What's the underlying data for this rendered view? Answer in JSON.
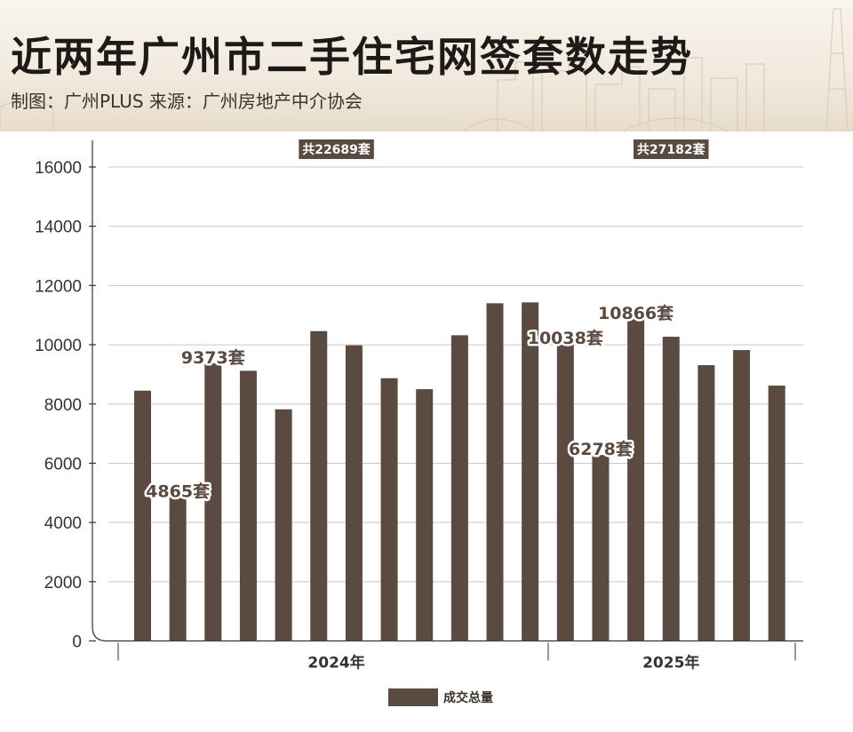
{
  "header": {
    "title": "近两年广州市二手住宅网签套数走势",
    "subtitle": "制图：广州PLUS  来源：广州房地产中介协会"
  },
  "colors": {
    "bar": "#5b4a40",
    "badge": "#5b4a40",
    "grid": "#c8c8c8",
    "axis": "#333333"
  },
  "chart_data": {
    "type": "bar",
    "ylim": [
      0,
      16000
    ],
    "yticks": [
      0,
      2000,
      4000,
      6000,
      8000,
      10000,
      12000,
      14000,
      16000
    ],
    "values": [
      8450,
      4865,
      9373,
      9120,
      7820,
      10460,
      9980,
      8870,
      8500,
      10320,
      11400,
      11430,
      10038,
      6278,
      10866,
      10270,
      9310,
      9820,
      8620
    ],
    "groups": [
      {
        "label": "2024年",
        "count": 12,
        "total_label": "共22689套"
      },
      {
        "label": "2025年",
        "count": 7,
        "total_label": "共27182套"
      }
    ],
    "data_labels": [
      {
        "index": 1,
        "text": "4865套"
      },
      {
        "index": 2,
        "text": "9373套"
      },
      {
        "index": 12,
        "text": "10038套"
      },
      {
        "index": 13,
        "text": "6278套"
      },
      {
        "index": 14,
        "text": "10866套"
      }
    ],
    "legend": [
      {
        "name": "成交总量"
      }
    ],
    "legend_position": "bottom"
  }
}
